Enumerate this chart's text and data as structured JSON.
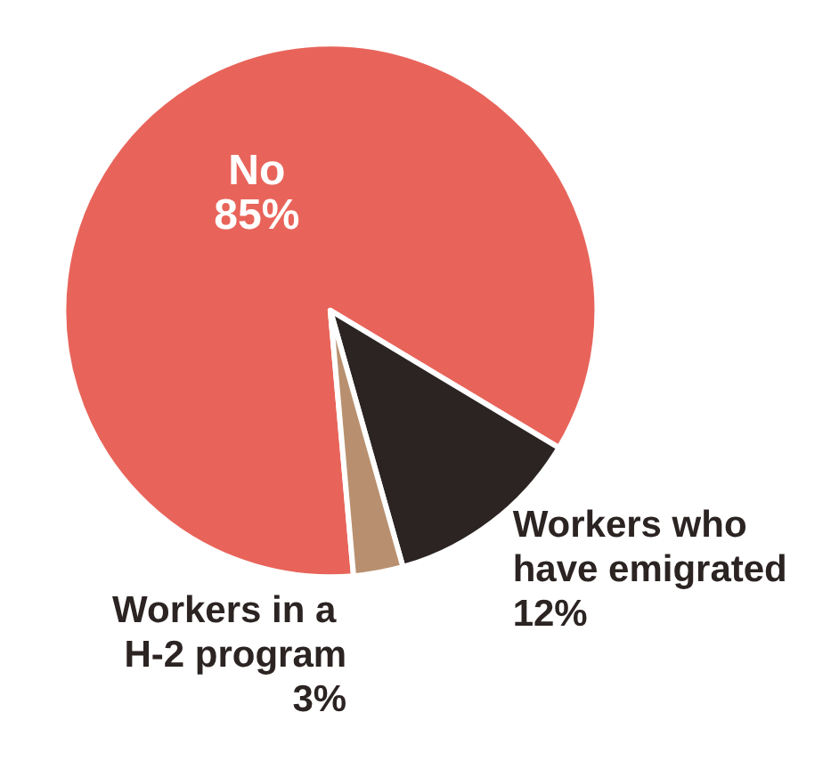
{
  "chart_data": {
    "type": "pie",
    "categories": [
      "No",
      "Workers who have emigrated",
      "Workers in a H-2 program"
    ],
    "values": [
      85,
      12,
      3
    ],
    "value_labels": [
      "85%",
      "12%",
      "3%"
    ],
    "colors": [
      "#e8645a",
      "#2b2422",
      "#b8906f"
    ],
    "data_labels": true,
    "legend": false
  }
}
